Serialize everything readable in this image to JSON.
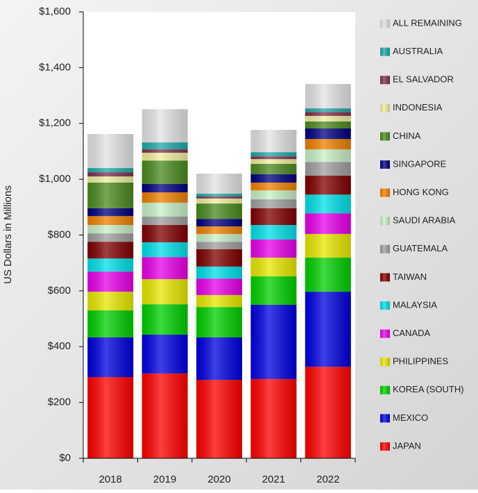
{
  "chart_data": {
    "type": "stacked_bar",
    "y_label": "US Dollars in Millions",
    "categories": [
      "2018",
      "2019",
      "2020",
      "2021",
      "2022"
    ],
    "ylim": [
      0,
      1600
    ],
    "yticks": [
      {
        "value": 0,
        "label": "$0"
      },
      {
        "value": 200,
        "label": "$200"
      },
      {
        "value": 400,
        "label": "$400"
      },
      {
        "value": 600,
        "label": "$600"
      },
      {
        "value": 800,
        "label": "$800"
      },
      {
        "value": 1000,
        "label": "$1,000"
      },
      {
        "value": 1200,
        "label": "$1,200"
      },
      {
        "value": 1400,
        "label": "$1,400"
      },
      {
        "value": 1600,
        "label": "$1,600"
      }
    ],
    "legend": "right",
    "series": [
      {
        "name": "JAPAN",
        "color": "#ff0000",
        "values": [
          291,
          304,
          281,
          284,
          328
        ]
      },
      {
        "name": "MEXICO",
        "color": "#0000e0",
        "values": [
          142,
          139,
          152,
          266,
          269
        ]
      },
      {
        "name": "KOREA (SOUTH)",
        "color": "#00d000",
        "values": [
          97,
          109,
          109,
          102,
          122
        ]
      },
      {
        "name": "PHILIPPINES",
        "color": "#e8e800",
        "values": [
          67,
          90,
          43,
          67,
          85
        ]
      },
      {
        "name": "CANADA",
        "color": "#e800e8",
        "values": [
          72,
          79,
          59,
          65,
          74
        ]
      },
      {
        "name": "MALAYSIA",
        "color": "#00e0e8",
        "values": [
          47,
          53,
          43,
          52,
          67
        ]
      },
      {
        "name": "TAIWAN",
        "color": "#800000",
        "values": [
          60,
          62,
          62,
          60,
          68
        ]
      },
      {
        "name": "GUATEMALA",
        "color": "#a0a0a0",
        "values": [
          30,
          30,
          27,
          32,
          49
        ]
      },
      {
        "name": "SAUDI ARABIA",
        "color": "#c8f0c8",
        "values": [
          30,
          50,
          28,
          32,
          45
        ]
      },
      {
        "name": "HONG KONG",
        "color": "#f08000",
        "values": [
          32,
          37,
          27,
          28,
          37
        ]
      },
      {
        "name": "SINGAPORE",
        "color": "#000080",
        "values": [
          28,
          30,
          27,
          30,
          38
        ]
      },
      {
        "name": "CHINA",
        "color": "#4a8a20",
        "values": [
          92,
          84,
          55,
          37,
          25
        ]
      },
      {
        "name": "INDONESIA",
        "color": "#f0f0a0",
        "values": [
          22,
          28,
          18,
          17,
          20
        ]
      },
      {
        "name": "EL SALVADOR",
        "color": "#803050",
        "values": [
          15,
          12,
          7,
          10,
          14
        ]
      },
      {
        "name": "AUSTRALIA",
        "color": "#20a8a8",
        "values": [
          15,
          25,
          10,
          15,
          13
        ]
      },
      {
        "name": "ALL REMAINING",
        "color": "#e4e4e4",
        "values": [
          122,
          119,
          72,
          80,
          87
        ]
      }
    ]
  }
}
